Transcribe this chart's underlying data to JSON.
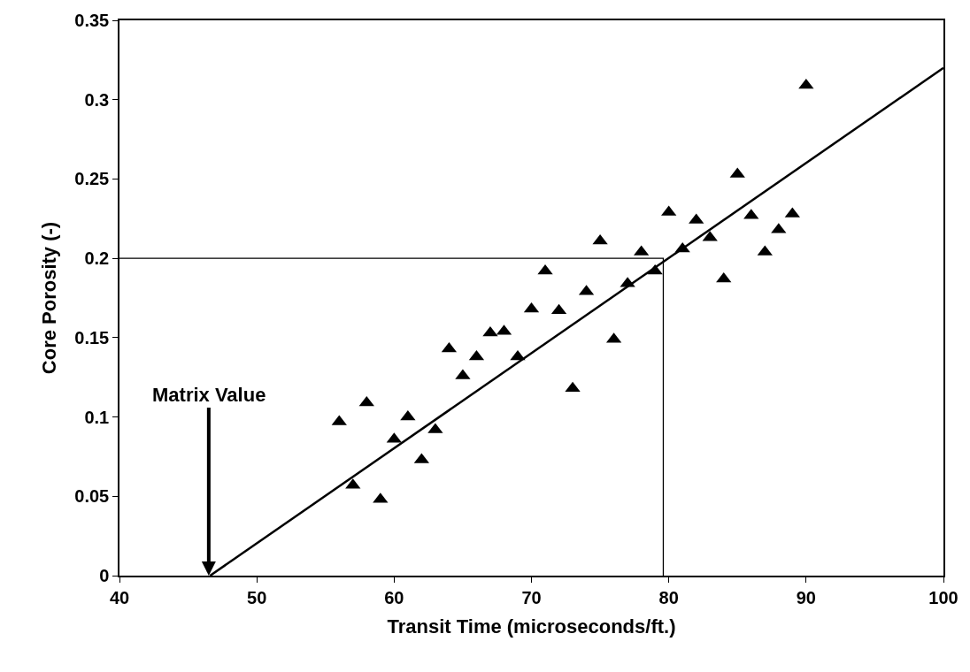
{
  "chart_data": {
    "type": "scatter",
    "xlabel": "Transit Time (microseconds/ft.)",
    "ylabel": "Core Porosity (-)",
    "xlim": [
      40,
      100
    ],
    "xticks": [
      40,
      50,
      60,
      70,
      80,
      90,
      100
    ],
    "ylim": [
      0,
      0.35
    ],
    "yticks": [
      0,
      0.05,
      0.1,
      0.15,
      0.2,
      0.25,
      0.3,
      0.35
    ],
    "series": [
      {
        "color": "#000000",
        "marker": "triangle",
        "x": [
          56,
          57,
          58,
          59,
          60,
          61,
          62,
          63,
          64,
          65,
          66,
          67,
          68,
          69,
          70,
          71,
          72,
          73,
          74,
          75,
          76,
          77,
          78,
          79,
          80,
          81,
          82,
          83,
          84,
          85,
          86,
          87,
          88,
          89,
          90
        ],
        "values": [
          0.097,
          0.057,
          0.109,
          0.048,
          0.086,
          0.1,
          0.073,
          0.092,
          0.143,
          0.126,
          0.138,
          0.153,
          0.154,
          0.138,
          0.168,
          0.192,
          0.167,
          0.118,
          0.179,
          0.211,
          0.149,
          0.184,
          0.204,
          0.192,
          0.229,
          0.206,
          0.224,
          0.213,
          0.187,
          0.253,
          0.227,
          0.204,
          0.218,
          0.228,
          0.309
        ]
      },
      {
        "type": "line",
        "color": "#000000",
        "line_style": "solid",
        "x": [
          46.6,
          100
        ],
        "values": [
          0,
          0.32
        ]
      },
      {
        "type": "line",
        "color": "#000000",
        "line_style": "solid",
        "x": [
          40,
          79.6,
          79.6
        ],
        "values": [
          0.2,
          0.2,
          0
        ]
      }
    ],
    "annotations": [
      {
        "text": "Matrix Value",
        "x": 46.5,
        "y": 0
      }
    ]
  }
}
